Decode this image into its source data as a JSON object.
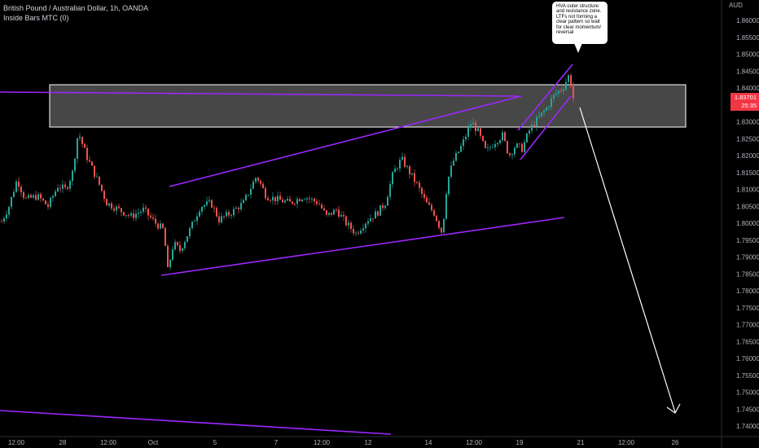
{
  "header": {
    "symbol_title": "British Pound / Australian Dollar, 1h, OANDA",
    "indicator": "Inside Bars MTC (0)",
    "currency": "AUD"
  },
  "annotation": {
    "text": "HVA outer structure and resistance zone. LTFs not forming a clear pattern so wait for clear momentum/ reversal"
  },
  "price_badge": {
    "price": "1.83701",
    "countdown": "25:35"
  },
  "colors": {
    "up": "#26a69a",
    "down": "#ef5350",
    "trendline": "#9c27ff",
    "zone": "#ffffff",
    "badge": "#f23645"
  },
  "chart_data": {
    "type": "candlestick",
    "y_ticks": [
      "1.86000",
      "1.85500",
      "1.85000",
      "1.84500",
      "1.84000",
      "1.83500",
      "1.83000",
      "1.82500",
      "1.82000",
      "1.81500",
      "1.81000",
      "1.80500",
      "1.80000",
      "1.79500",
      "1.79000",
      "1.78500",
      "1.78000",
      "1.77500",
      "1.77000",
      "1.76500",
      "1.76000",
      "1.75500",
      "1.75000",
      "1.74500",
      "1.74000"
    ],
    "x_ticks": [
      "12:00",
      "28",
      "12:00",
      "Oct",
      "5",
      "7",
      "12:00",
      "12",
      "14",
      "12:00",
      "19",
      "21",
      "12:00",
      "26"
    ],
    "ylim": [
      1.739,
      1.8625
    ],
    "current_price": 1.83701,
    "resistance_zone": [
      1.8288,
      1.8412
    ],
    "price_path": [
      [
        0,
        1.8
      ],
      [
        10,
        1.805
      ],
      [
        20,
        1.813
      ],
      [
        30,
        1.807
      ],
      [
        45,
        1.808
      ],
      [
        58,
        1.805
      ],
      [
        70,
        1.811
      ],
      [
        80,
        1.81
      ],
      [
        88,
        1.815
      ],
      [
        95,
        1.827
      ],
      [
        105,
        1.82
      ],
      [
        120,
        1.812
      ],
      [
        130,
        1.806
      ],
      [
        145,
        1.804
      ],
      [
        160,
        1.802
      ],
      [
        175,
        1.804
      ],
      [
        190,
        1.8
      ],
      [
        200,
        1.798
      ],
      [
        205,
        1.786
      ],
      [
        212,
        1.794
      ],
      [
        220,
        1.792
      ],
      [
        232,
        1.798
      ],
      [
        245,
        1.805
      ],
      [
        258,
        1.806
      ],
      [
        268,
        1.801
      ],
      [
        282,
        1.803
      ],
      [
        298,
        1.806
      ],
      [
        314,
        1.814
      ],
      [
        326,
        1.808
      ],
      [
        340,
        1.807
      ],
      [
        355,
        1.806
      ],
      [
        372,
        1.808
      ],
      [
        390,
        1.806
      ],
      [
        400,
        1.802
      ],
      [
        412,
        1.804
      ],
      [
        424,
        1.8
      ],
      [
        436,
        1.797
      ],
      [
        450,
        1.801
      ],
      [
        462,
        1.803
      ],
      [
        472,
        1.806
      ],
      [
        482,
        1.815
      ],
      [
        492,
        1.819
      ],
      [
        502,
        1.815
      ],
      [
        512,
        1.811
      ],
      [
        522,
        1.806
      ],
      [
        532,
        1.803
      ],
      [
        542,
        1.797
      ],
      [
        548,
        1.812
      ],
      [
        555,
        1.818
      ],
      [
        566,
        1.823
      ],
      [
        578,
        1.83
      ],
      [
        586,
        1.827
      ],
      [
        596,
        1.821
      ],
      [
        606,
        1.824
      ],
      [
        616,
        1.826
      ],
      [
        624,
        1.82
      ],
      [
        632,
        1.823
      ],
      [
        640,
        1.822
      ],
      [
        650,
        1.828
      ],
      [
        660,
        1.831
      ],
      [
        670,
        1.834
      ],
      [
        680,
        1.838
      ],
      [
        690,
        1.84
      ],
      [
        698,
        1.844
      ],
      [
        703,
        1.837
      ]
    ]
  }
}
